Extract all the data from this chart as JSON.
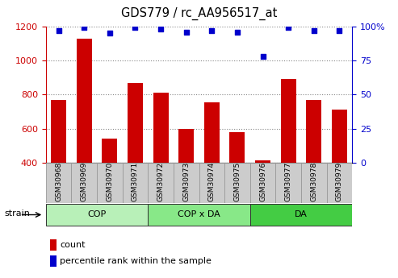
{
  "title": "GDS779 / rc_AA956517_at",
  "samples": [
    "GSM30968",
    "GSM30969",
    "GSM30970",
    "GSM30971",
    "GSM30972",
    "GSM30973",
    "GSM30974",
    "GSM30975",
    "GSM30976",
    "GSM30977",
    "GSM30978",
    "GSM30979"
  ],
  "counts": [
    770,
    1130,
    540,
    870,
    810,
    600,
    755,
    578,
    415,
    890,
    770,
    710
  ],
  "percentiles": [
    97,
    99,
    95,
    99,
    98,
    96,
    97,
    96,
    78,
    99,
    97,
    97
  ],
  "groups": [
    {
      "label": "COP",
      "start": 0,
      "end": 4,
      "color": "#b8f0b8"
    },
    {
      "label": "COP x DA",
      "start": 4,
      "end": 8,
      "color": "#88e888"
    },
    {
      "label": "DA",
      "start": 8,
      "end": 12,
      "color": "#44cc44"
    }
  ],
  "ylim_left": [
    400,
    1200
  ],
  "ylim_right": [
    0,
    100
  ],
  "yticks_left": [
    400,
    600,
    800,
    1000,
    1200
  ],
  "yticks_right": [
    0,
    25,
    50,
    75,
    100
  ],
  "bar_color": "#cc0000",
  "dot_color": "#0000cc",
  "bar_width": 0.6,
  "grid_color": "#888888",
  "tick_label_color_left": "#cc0000",
  "tick_label_color_right": "#0000cc",
  "col_bg_color": "#cccccc",
  "col_border_color": "#999999"
}
